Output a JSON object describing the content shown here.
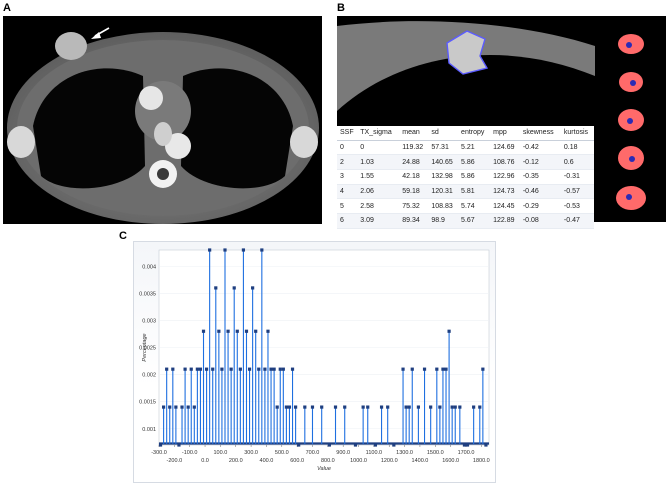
{
  "labels": {
    "a": "A",
    "b": "B",
    "c": "C"
  },
  "table": {
    "headers": [
      "SSF",
      "TX_sigma",
      "mean",
      "sd",
      "entropy",
      "mpp",
      "skewness",
      "kurtosis"
    ],
    "rows": [
      [
        "0",
        "0",
        "119.32",
        "57.31",
        "5.21",
        "124.69",
        "-0.42",
        "0.18"
      ],
      [
        "2",
        "1.03",
        "24.88",
        "140.65",
        "5.86",
        "108.76",
        "-0.12",
        "0.6"
      ],
      [
        "3",
        "1.55",
        "42.18",
        "132.98",
        "5.86",
        "122.96",
        "-0.35",
        "-0.31"
      ],
      [
        "4",
        "2.06",
        "59.18",
        "120.31",
        "5.81",
        "124.73",
        "-0.46",
        "-0.57"
      ],
      [
        "5",
        "2.58",
        "75.32",
        "108.83",
        "5.74",
        "124.45",
        "-0.29",
        "-0.53"
      ],
      [
        "6",
        "3.09",
        "89.34",
        "98.9",
        "5.67",
        "122.89",
        "-0.08",
        "-0.47"
      ]
    ]
  },
  "colors": {
    "stem": "#1e6fe0",
    "marker": "#1f3f80",
    "roi": "#5b5bff",
    "heat": "#ff6a6a"
  },
  "chart_data": {
    "type": "bar",
    "xlabel": "Value",
    "ylabel": "Percentage",
    "xlim": [
      -300,
      1850
    ],
    "ylim": [
      0.0007,
      0.0043
    ],
    "x_ticks": [
      "-300.0",
      "-200.0",
      "-100.0",
      "0.0",
      "100.0",
      "200.0",
      "300.0",
      "400.0",
      "500.0",
      "600.0",
      "700.0",
      "800.0",
      "900.0",
      "1000.0",
      "1100.0",
      "1200.0",
      "1300.0",
      "1400.0",
      "1500.0",
      "1600.0",
      "1700.0",
      "1800.0"
    ],
    "y_ticks": [
      "0.001",
      "0.0015",
      "0.002",
      "0.0025",
      "0.003",
      "0.0035",
      "0.004"
    ],
    "x": [
      -290,
      -270,
      -250,
      -230,
      -210,
      -190,
      -170,
      -150,
      -130,
      -110,
      -90,
      -70,
      -50,
      -30,
      -10,
      10,
      30,
      50,
      70,
      90,
      110,
      130,
      150,
      170,
      190,
      210,
      230,
      250,
      270,
      290,
      310,
      330,
      350,
      370,
      390,
      410,
      430,
      450,
      470,
      490,
      510,
      530,
      550,
      570,
      590,
      610,
      650,
      700,
      760,
      810,
      850,
      910,
      980,
      1030,
      1060,
      1110,
      1150,
      1190,
      1230,
      1290,
      1310,
      1330,
      1350,
      1390,
      1430,
      1470,
      1510,
      1530,
      1550,
      1570,
      1590,
      1610,
      1630,
      1660,
      1690,
      1710,
      1750,
      1790,
      1810,
      1830
    ],
    "values": [
      0.0007,
      0.0014,
      0.0021,
      0.0014,
      0.0021,
      0.0014,
      0.0007,
      0.0014,
      0.0021,
      0.0014,
      0.0021,
      0.0014,
      0.0021,
      0.0021,
      0.0028,
      0.0021,
      0.0043,
      0.0021,
      0.0036,
      0.0028,
      0.0021,
      0.0043,
      0.0028,
      0.0021,
      0.0036,
      0.0028,
      0.0021,
      0.0043,
      0.0028,
      0.0021,
      0.0036,
      0.0028,
      0.0021,
      0.0043,
      0.0021,
      0.0028,
      0.0021,
      0.0021,
      0.0014,
      0.0021,
      0.0021,
      0.0014,
      0.0014,
      0.0021,
      0.0014,
      0.0007,
      0.0014,
      0.0014,
      0.0014,
      0.0007,
      0.0014,
      0.0014,
      0.0007,
      0.0014,
      0.0014,
      0.0007,
      0.0014,
      0.0014,
      0.0007,
      0.0021,
      0.0014,
      0.0014,
      0.0021,
      0.0014,
      0.0021,
      0.0014,
      0.0021,
      0.0014,
      0.0021,
      0.0021,
      0.0028,
      0.0014,
      0.0014,
      0.0014,
      0.0007,
      0.0007,
      0.0014,
      0.0014,
      0.0021,
      0.0007
    ]
  }
}
